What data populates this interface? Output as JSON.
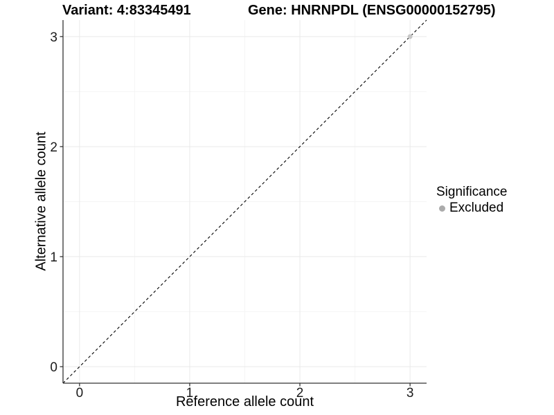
{
  "figure": {
    "title_left": "Variant: 4:83345491",
    "title_right": "Gene: HNRNPDL (ENSG00000152795)"
  },
  "chart_data": {
    "type": "scatter",
    "title": "Variant: 4:83345491   Gene: HNRNPDL (ENSG00000152795)",
    "xlabel": "Reference allele count",
    "ylabel": "Alternative allele count",
    "xlim": [
      -0.15,
      3.15
    ],
    "ylim": [
      -0.15,
      3.15
    ],
    "xticks": [
      0,
      1,
      2,
      3
    ],
    "yticks": [
      0,
      1,
      2,
      3
    ],
    "xminor": [
      0.5,
      1.5,
      2.5
    ],
    "yminor": [
      0.5,
      1.5,
      2.5
    ],
    "grid": "major+minor",
    "identity_line": {
      "slope": 1,
      "intercept": 0,
      "style": "dashed",
      "color": "#000000"
    },
    "series": [
      {
        "name": "Excluded",
        "color": "#c8c8c8",
        "points": [
          [
            3,
            3
          ]
        ]
      }
    ],
    "legend": {
      "title": "Significance",
      "position": "right",
      "items": [
        {
          "label": "Excluded",
          "color": "#ababab"
        }
      ]
    }
  },
  "colors": {
    "background": "#ffffff",
    "grid_major": "#e9e9e9",
    "grid_minor": "#f5f5f5",
    "axis_line": "#333333",
    "tick_text": "#1a1a1a",
    "title_text": "#000000"
  }
}
